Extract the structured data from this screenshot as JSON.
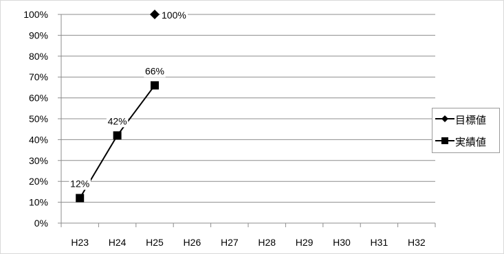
{
  "chart_data": {
    "type": "line",
    "categories": [
      "H23",
      "H24",
      "H25",
      "H26",
      "H27",
      "H28",
      "H29",
      "H30",
      "H31",
      "H32"
    ],
    "ylim": [
      0,
      100
    ],
    "yticks": [
      0,
      10,
      20,
      30,
      40,
      50,
      60,
      70,
      80,
      90,
      100
    ],
    "ytick_suffix": "%",
    "grid": true,
    "legend_position": "right",
    "series": [
      {
        "name": "目標値",
        "marker": "diamond",
        "color": "#000000",
        "values": [
          null,
          null,
          100,
          null,
          null,
          null,
          null,
          null,
          null,
          null
        ],
        "labels": [
          null,
          null,
          "100%",
          null,
          null,
          null,
          null,
          null,
          null,
          null
        ]
      },
      {
        "name": "実績値",
        "marker": "square",
        "color": "#000000",
        "values": [
          12,
          42,
          66,
          null,
          null,
          null,
          null,
          null,
          null,
          null
        ],
        "labels": [
          "12%",
          "42%",
          "66%",
          null,
          null,
          null,
          null,
          null,
          null,
          null
        ]
      }
    ]
  }
}
